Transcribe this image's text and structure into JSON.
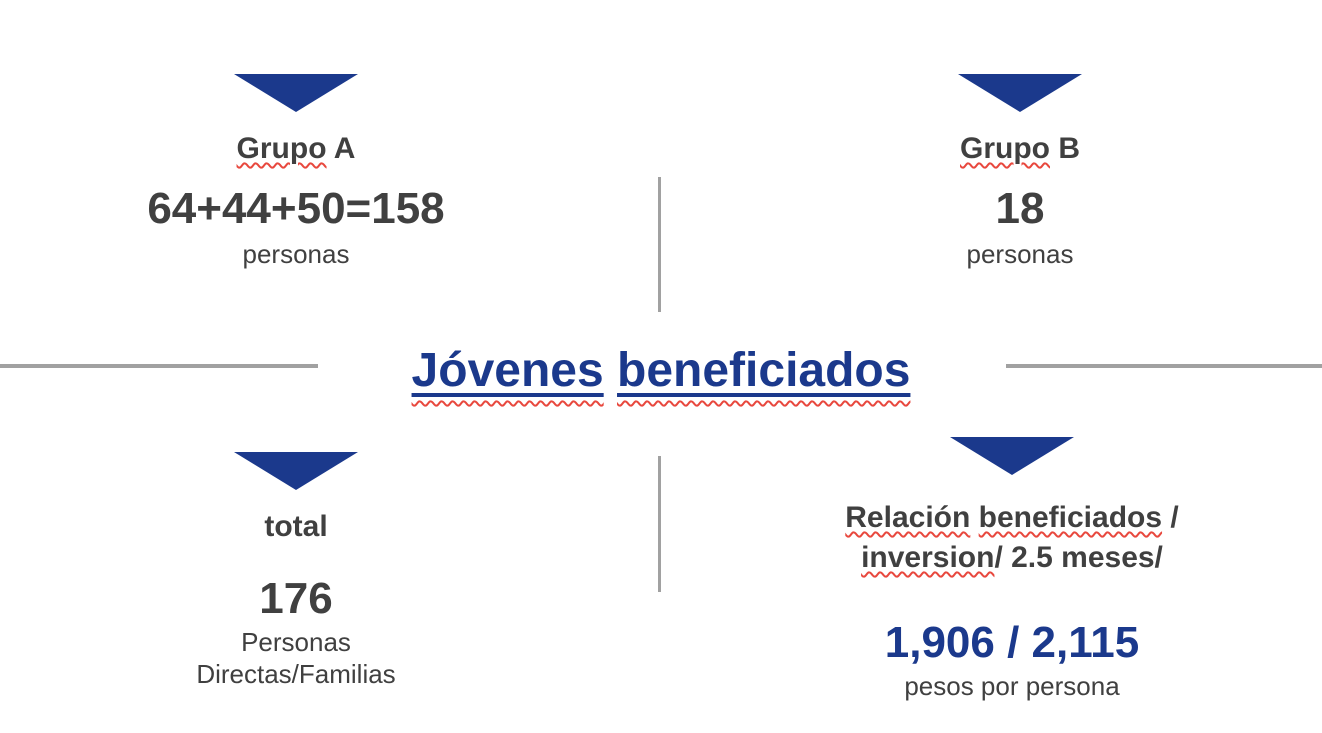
{
  "colors": {
    "navy": "#1b398c",
    "text_dark": "#404040",
    "line_gray": "#a1a1a1",
    "squiggle_red": "#e8483e"
  },
  "title": {
    "text": "Jóvenes beneficiados",
    "word1": "Jóvenes",
    "word2": "beneficiados"
  },
  "quadrants": {
    "top_left": {
      "label_word": "Grupo",
      "label_suffix": " A",
      "value": "64+44+50=158",
      "unit": "personas"
    },
    "top_right": {
      "label_word": "Grupo",
      "label_suffix": " B",
      "value": "18",
      "unit": "personas"
    },
    "bottom_left": {
      "label": "total",
      "value": "176",
      "unit_line1": "Personas",
      "unit_line2": "Directas/Familias"
    },
    "bottom_right": {
      "label_line1_word1": "Relación",
      "label_line1_space": " ",
      "label_line1_word2": "beneficiados",
      "label_line1_tail": " /",
      "label_line2_word1": "inversion",
      "label_line2_tail": "/ 2.5 meses/",
      "value": "1,906 / 2,115",
      "unit": "pesos por persona"
    }
  }
}
